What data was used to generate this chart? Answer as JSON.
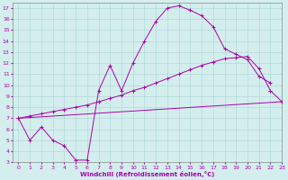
{
  "xlabel": "Windchill (Refroidissement éolien,°C)",
  "xlim": [
    -0.5,
    23
  ],
  "ylim": [
    3,
    17.5
  ],
  "xticks": [
    0,
    1,
    2,
    3,
    4,
    5,
    6,
    7,
    8,
    9,
    10,
    11,
    12,
    13,
    14,
    15,
    16,
    17,
    18,
    19,
    20,
    21,
    22,
    23
  ],
  "yticks": [
    3,
    4,
    5,
    6,
    7,
    8,
    9,
    10,
    11,
    12,
    13,
    14,
    15,
    16,
    17
  ],
  "bg_color": "#d4eeee",
  "line_color": "#aa00aa",
  "grid_color": "#aad4d4",
  "series": [
    {
      "x": [
        0,
        1,
        2,
        3,
        4,
        5,
        6,
        7,
        8,
        9,
        10,
        11,
        12,
        13,
        14,
        15,
        16,
        17,
        18,
        19,
        20,
        21,
        22
      ],
      "y": [
        7,
        5,
        6.2,
        5,
        4.5,
        3.2,
        3.2,
        9.5,
        11.8,
        9.5,
        12,
        14,
        15.8,
        17,
        17.2,
        16.8,
        16.3,
        15.3,
        13.3,
        12.8,
        12.3,
        10.8,
        10.2
      ],
      "marker": true
    },
    {
      "x": [
        0,
        23
      ],
      "y": [
        7.0,
        8.5
      ],
      "marker": false
    },
    {
      "x": [
        0,
        1,
        2,
        3,
        4,
        5,
        6,
        7,
        8,
        9,
        10,
        11,
        12,
        13,
        14,
        15,
        16,
        17,
        18,
        19,
        20,
        21,
        22,
        23
      ],
      "y": [
        7.0,
        7.2,
        7.4,
        7.6,
        7.8,
        8.0,
        8.2,
        8.5,
        8.8,
        9.1,
        9.5,
        9.8,
        10.2,
        10.6,
        11.0,
        11.4,
        11.8,
        12.1,
        12.4,
        12.5,
        12.6,
        11.5,
        9.5,
        8.5
      ],
      "marker": true
    }
  ]
}
